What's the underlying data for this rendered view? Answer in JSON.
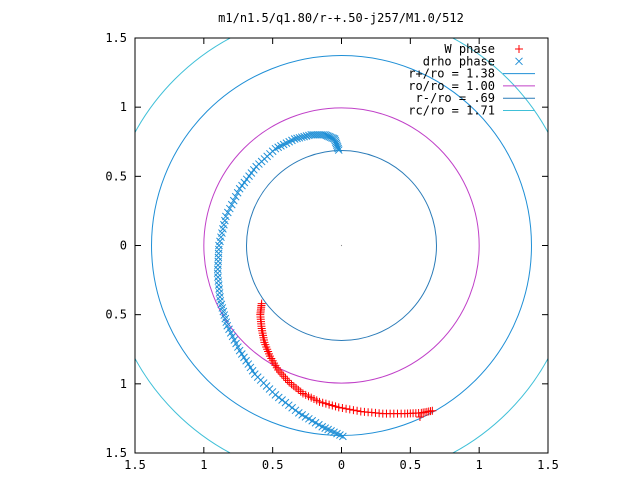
{
  "chart_data": {
    "type": "scatter",
    "title": "m1/n1.5/q1.80/r-+.50-j257/M1.0/512",
    "xlabel": "",
    "ylabel": "",
    "xlim": [
      -1.5,
      1.5
    ],
    "ylim": [
      -1.5,
      1.5
    ],
    "x_tick_values": [
      -1.5,
      -1,
      -0.5,
      0,
      0.5,
      1,
      1.5
    ],
    "x_tick_labels": [
      "1.5",
      "1",
      "0.5",
      "0",
      "0.5",
      "1",
      "1.5"
    ],
    "y_tick_values": [
      1.5,
      1,
      0.5,
      0,
      -0.5,
      -1,
      -1.5
    ],
    "y_tick_labels": [
      "1.5",
      "1",
      "0.5",
      "0",
      "0.5",
      "1",
      "1.5"
    ],
    "grid": false,
    "legend_position": "top-right",
    "series": [
      {
        "name": "W phase",
        "marker": "plus",
        "color": "#ff0000",
        "points": [
          [
            -0.58,
            -0.42
          ],
          [
            -0.59,
            -0.5
          ],
          [
            -0.58,
            -0.6
          ],
          [
            -0.56,
            -0.7
          ],
          [
            -0.52,
            -0.8
          ],
          [
            -0.46,
            -0.9
          ],
          [
            -0.38,
            -0.99
          ],
          [
            -0.28,
            -1.07
          ],
          [
            -0.16,
            -1.13
          ],
          [
            -0.02,
            -1.17
          ],
          [
            0.14,
            -1.2
          ],
          [
            0.3,
            -1.215
          ],
          [
            0.46,
            -1.215
          ],
          [
            0.58,
            -1.21
          ],
          [
            0.66,
            -1.195
          ],
          [
            0.57,
            -1.24
          ]
        ]
      },
      {
        "name": "drho phase",
        "marker": "cross",
        "color": "#1f8fd6",
        "points": [
          [
            -0.02,
            0.69
          ],
          [
            -0.05,
            0.77
          ],
          [
            -0.12,
            0.8
          ],
          [
            -0.22,
            0.8
          ],
          [
            -0.34,
            0.77
          ],
          [
            -0.48,
            0.7
          ],
          [
            -0.62,
            0.57
          ],
          [
            -0.74,
            0.41
          ],
          [
            -0.84,
            0.21
          ],
          [
            -0.89,
            0.0
          ],
          [
            -0.9,
            -0.2
          ],
          [
            -0.88,
            -0.4
          ],
          [
            -0.83,
            -0.58
          ],
          [
            -0.74,
            -0.76
          ],
          [
            -0.63,
            -0.93
          ],
          [
            -0.48,
            -1.08
          ],
          [
            -0.31,
            -1.21
          ],
          [
            -0.14,
            -1.31
          ],
          [
            0.01,
            -1.38
          ]
        ]
      },
      {
        "name": "r+/ro = 1.38",
        "type": "circle",
        "radius": 1.38,
        "color": "#1f8fd6"
      },
      {
        "name": "ro/ro = 1.00",
        "type": "circle",
        "radius": 1.0,
        "color": "#c040c8"
      },
      {
        "name": "r-/ro = .69",
        "type": "circle",
        "radius": 0.69,
        "color": "#2a7bb8"
      },
      {
        "name": "rc/ro = 1.71",
        "type": "circle",
        "radius": 1.71,
        "color": "#40c0d8"
      }
    ]
  }
}
